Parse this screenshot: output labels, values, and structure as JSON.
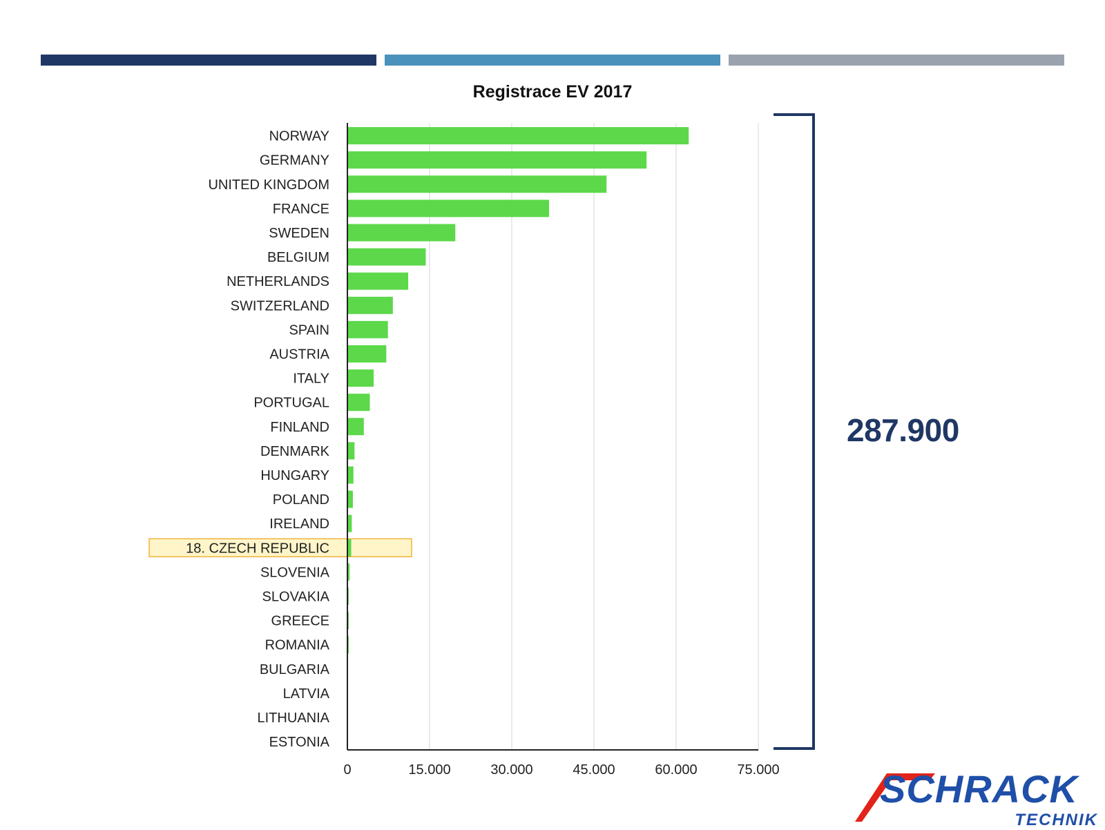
{
  "top_bars": [
    {
      "name": "bar-dark-blue",
      "color": "#1f3764"
    },
    {
      "name": "bar-light-blue",
      "color": "#4a92bb"
    },
    {
      "name": "bar-grey",
      "color": "#9aa3ad"
    }
  ],
  "chart_data": {
    "type": "bar",
    "orientation": "horizontal",
    "title": "Registrace EV 2017",
    "categories": [
      "NORWAY",
      "GERMANY",
      "UNITED KINGDOM",
      "FRANCE",
      "SWEDEN",
      "BELGIUM",
      "NETHERLANDS",
      "SWITZERLAND",
      "SPAIN",
      "AUSTRIA",
      "ITALY",
      "PORTUGAL",
      "FINLAND",
      "DENMARK",
      "HUNGARY",
      "POLAND",
      "IRELAND",
      "18. CZECH REPUBLIC",
      "SLOVENIA",
      "SLOVAKIA",
      "GREECE",
      "ROMANIA",
      "BULGARIA",
      "LATVIA",
      "LITHUANIA",
      "ESTONIA"
    ],
    "values": [
      62300,
      54600,
      47300,
      36800,
      19700,
      14300,
      11100,
      8300,
      7400,
      7100,
      4800,
      4100,
      3000,
      1300,
      1100,
      1000,
      800,
      700,
      400,
      200,
      200,
      150,
      0,
      0,
      0,
      0
    ],
    "xlim": [
      0,
      75000
    ],
    "xticks": [
      "0",
      "15.000",
      "30.000",
      "45.000",
      "60.000",
      "75.000"
    ],
    "xtick_values": [
      0,
      15000,
      30000,
      45000,
      60000,
      75000
    ],
    "grid": true,
    "bar_color": "#5cd84a",
    "highlight_category": "18. CZECH REPUBLIC",
    "highlight_color": "#fff5c8",
    "highlight_border": "#f0b43c"
  },
  "summary": {
    "total": "287.900",
    "color": "#1f3764"
  },
  "logo": {
    "name": "SCHRACK",
    "sub": "TECHNIK",
    "color": "#1f4fa8",
    "accent": "#e2231a"
  }
}
